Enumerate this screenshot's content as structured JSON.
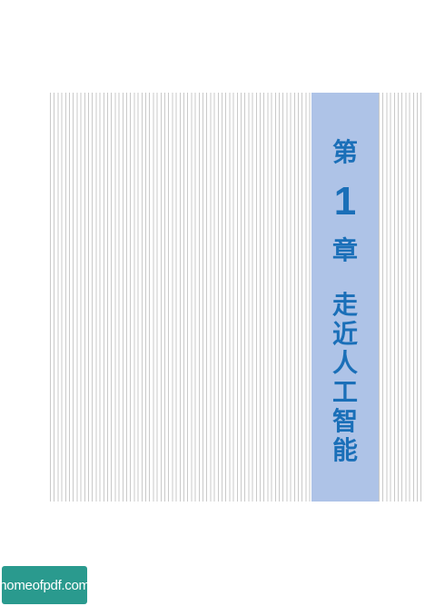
{
  "chapter": {
    "prefix": "第",
    "number": "1",
    "suffix": "章",
    "title_chars": [
      "走",
      "近",
      "人",
      "工",
      "智",
      "能"
    ]
  },
  "watermark": {
    "text": "homeofpdf.com"
  },
  "colors": {
    "band_background": "#aec3e7",
    "title_text": "#1a6fb8",
    "stripe": "#c9c9c9",
    "watermark_background": "#2a9a8e"
  }
}
